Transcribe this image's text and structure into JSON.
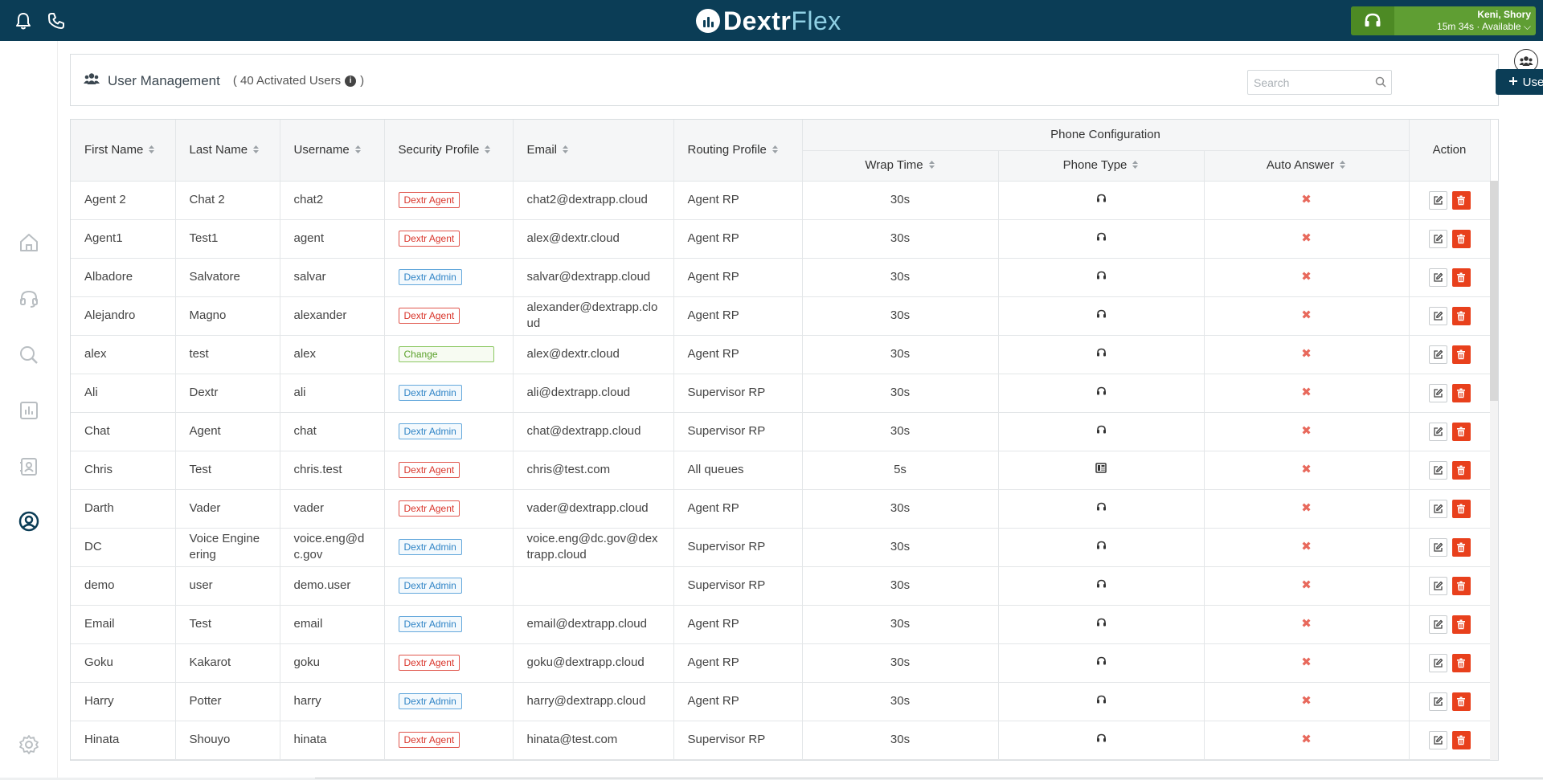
{
  "brand": {
    "part1": "Dextr",
    "part2": "Flex"
  },
  "agent_status": {
    "name": "Keni, Shory",
    "status": "15m 34s · Available"
  },
  "header": {
    "title": "User Management",
    "subtitle": "( 40 Activated Users",
    "subtitle_close": ")",
    "info_icon": "i"
  },
  "search": {
    "placeholder": "Search"
  },
  "add_user_label": "User",
  "columns": {
    "first_name": "First Name",
    "last_name": "Last Name",
    "username": "Username",
    "security_profile": "Security Profile",
    "email": "Email",
    "routing_profile": "Routing Profile",
    "phone_configuration": "Phone Configuration",
    "wrap_time": "Wrap Time",
    "phone_type": "Phone Type",
    "auto_answer": "Auto Answer",
    "action": "Action"
  },
  "rows": [
    {
      "first": "Agent 2",
      "last": "Chat 2",
      "username": "chat2",
      "profile": "Dextr Agent",
      "email": "chat2@dextrapp.cloud",
      "routing": "Agent RP",
      "wrap": "30s",
      "phone_type": "softphone"
    },
    {
      "first": "Agent1",
      "last": "Test1",
      "username": "agent",
      "profile": "Dextr Agent",
      "email": "alex@dextr.cloud",
      "routing": "Agent RP",
      "wrap": "30s",
      "phone_type": "softphone"
    },
    {
      "first": "Albadore",
      "last": "Salvatore",
      "username": "salvar",
      "profile": "Dextr Admin",
      "email": "salvar@dextrapp.cloud",
      "routing": "Agent RP",
      "wrap": "30s",
      "phone_type": "softphone"
    },
    {
      "first": "Alejandro",
      "last": "Magno",
      "username": "alexander",
      "profile": "Dextr Agent",
      "email": "alexander@dextrapp.cloud",
      "routing": "Agent RP",
      "wrap": "30s",
      "phone_type": "softphone"
    },
    {
      "first": "alex",
      "last": "test",
      "username": "alex",
      "profile": "Change",
      "email": "alex@dextr.cloud",
      "routing": "Agent RP",
      "wrap": "30s",
      "phone_type": "softphone"
    },
    {
      "first": "Ali",
      "last": "Dextr",
      "username": "ali",
      "profile": "Dextr Admin",
      "email": "ali@dextrapp.cloud",
      "routing": "Supervisor RP",
      "wrap": "30s",
      "phone_type": "softphone"
    },
    {
      "first": "Chat",
      "last": "Agent",
      "username": "chat",
      "profile": "Dextr Admin",
      "email": "chat@dextrapp.cloud",
      "routing": "Supervisor RP",
      "wrap": "30s",
      "phone_type": "softphone"
    },
    {
      "first": "Chris",
      "last": "Test",
      "username": "chris.test",
      "profile": "Dextr Agent",
      "email": "chris@test.com",
      "routing": "All queues",
      "wrap": "5s",
      "phone_type": "deskphone"
    },
    {
      "first": "Darth",
      "last": "Vader",
      "username": "vader",
      "profile": "Dextr Agent",
      "email": "vader@dextrapp.cloud",
      "routing": "Agent RP",
      "wrap": "30s",
      "phone_type": "softphone"
    },
    {
      "first": "DC",
      "last": "Voice Engineering",
      "username": "voice.eng@dc.gov",
      "profile": "Dextr Admin",
      "email": "voice.eng@dc.gov@dextrapp.cloud",
      "routing": "Supervisor RP",
      "wrap": "30s",
      "phone_type": "softphone"
    },
    {
      "first": "demo",
      "last": "user",
      "username": "demo.user",
      "profile": "Dextr Admin",
      "email": "",
      "routing": "Supervisor RP",
      "wrap": "30s",
      "phone_type": "softphone"
    },
    {
      "first": "Email",
      "last": "Test",
      "username": "email",
      "profile": "Dextr Admin",
      "email": "email@dextrapp.cloud",
      "routing": "Agent RP",
      "wrap": "30s",
      "phone_type": "softphone"
    },
    {
      "first": "Goku",
      "last": "Kakarot",
      "username": "goku",
      "profile": "Dextr Agent",
      "email": "goku@dextrapp.cloud",
      "routing": "Agent RP",
      "wrap": "30s",
      "phone_type": "softphone"
    },
    {
      "first": "Harry",
      "last": "Potter",
      "username": "harry",
      "profile": "Dextr Admin",
      "email": "harry@dextrapp.cloud",
      "routing": "Agent RP",
      "wrap": "30s",
      "phone_type": "softphone"
    },
    {
      "first": "Hinata",
      "last": "Shouyo",
      "username": "hinata",
      "profile": "Dextr Agent",
      "email": "hinata@test.com",
      "routing": "Supervisor RP",
      "wrap": "30s",
      "phone_type": "softphone"
    }
  ],
  "auto_answer_symbol": "✖",
  "colors": {
    "topbar": "#0b3d56",
    "status_green": "#5f9e33",
    "delete_red": "#e8401c",
    "agent_badge": "#d9352b",
    "admin_badge": "#2f84c6",
    "change_badge": "#5aa12a"
  }
}
